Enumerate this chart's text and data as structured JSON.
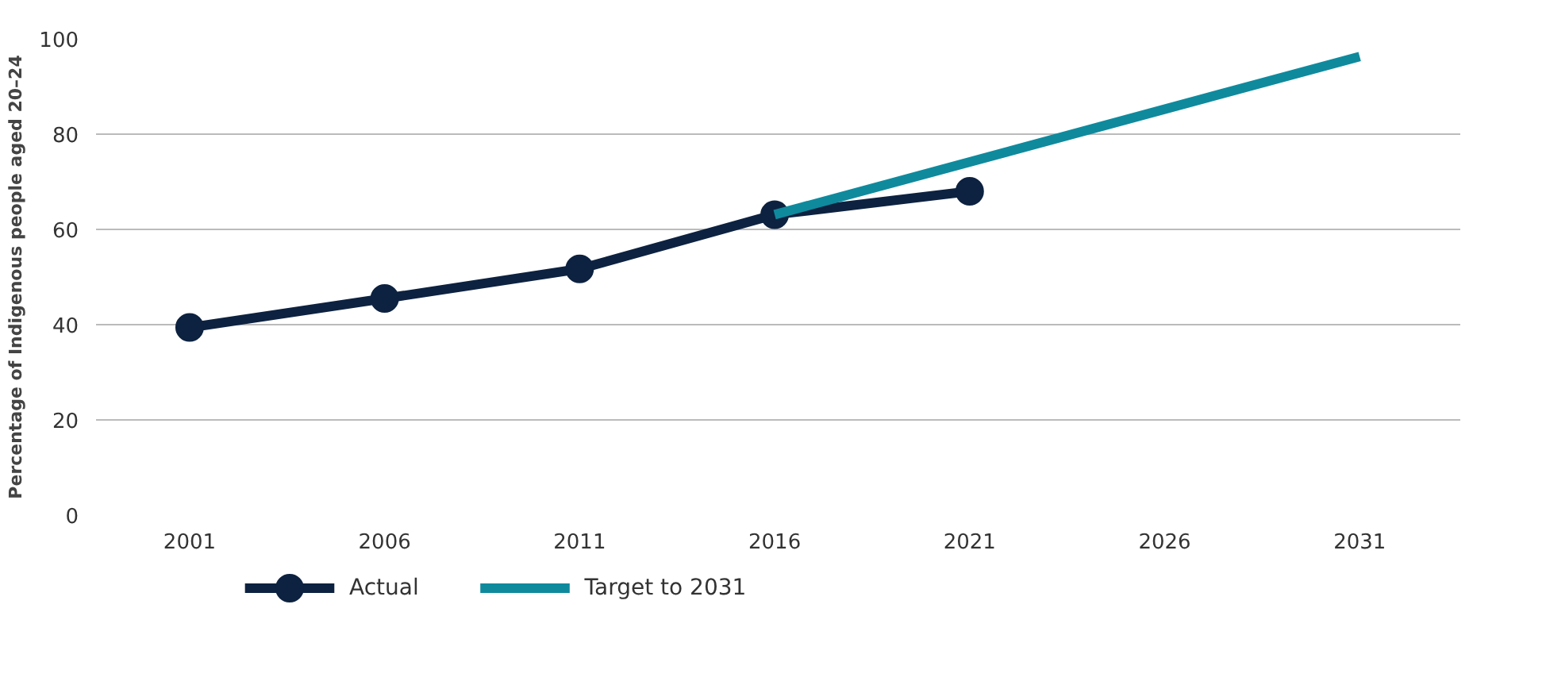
{
  "chart_data": {
    "type": "line",
    "ylabel": "Percentage of Indigenous people aged 20–24",
    "xlim": [
      1998.6,
      2033.6
    ],
    "xticks": [
      2001,
      2006,
      2011,
      2016,
      2021,
      2026,
      2031
    ],
    "ylim": [
      0,
      100
    ],
    "yticks": [
      0,
      20,
      40,
      60,
      80,
      100
    ],
    "grid": "y",
    "legend": "bottom left",
    "series": [
      {
        "name": "Actual",
        "color": "#0d2240",
        "x": [
          2001,
          2006,
          2011,
          2016,
          2021
        ],
        "values": [
          39.4,
          45.5,
          51.7,
          63.1,
          68
        ],
        "marker": "circle"
      },
      {
        "name": "Target to 2031",
        "color": "#0f8a9d",
        "x": [
          2016,
          2031
        ],
        "values": [
          63.1,
          96.3
        ],
        "marker": "none"
      }
    ]
  }
}
